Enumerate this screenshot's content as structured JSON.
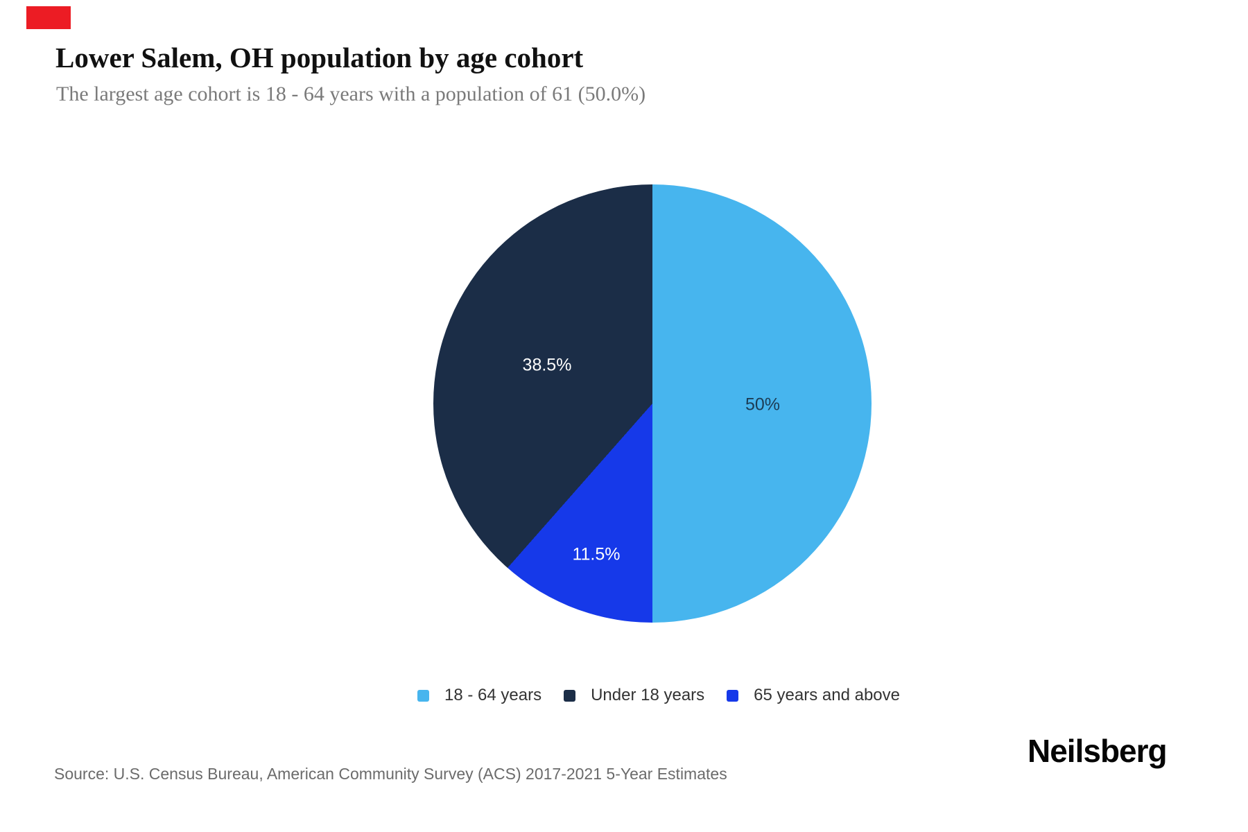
{
  "page": {
    "title": "Lower Salem, OH population by age cohort",
    "subtitle": "The largest age cohort is 18 - 64 years with a population of 61 (50.0%)",
    "source": "Source: U.S. Census Bureau, American Community Survey (ACS) 2017-2021 5-Year Estimates",
    "brand": "Neilsberg"
  },
  "colors": {
    "background": "#FFFFFF",
    "title_text": "#111111",
    "subtitle_text": "#7A7A7A",
    "source_text": "#6B6B6B",
    "legend_text": "#333333",
    "red_marker": "#EC1C24"
  },
  "chart_data": {
    "type": "pie",
    "title": "Lower Salem, OH population by age cohort",
    "largest_cohort": "18 - 64 years",
    "largest_cohort_population": 61,
    "slices": [
      {
        "label": "18 - 64 years",
        "pct": 50.0,
        "pct_label": "50%",
        "color": "#47B5EE",
        "pct_label_color": "#1C3C54"
      },
      {
        "label": "Under 18 years",
        "pct": 38.5,
        "pct_label": "38.5%",
        "color": "#1B2D47",
        "pct_label_color": "#FFFFFF"
      },
      {
        "label": "65 years and above",
        "pct": 11.5,
        "pct_label": "11.5%",
        "color": "#1639E9",
        "pct_label_color": "#FFFFFF"
      }
    ],
    "clockwise_draw_order": [
      0,
      2,
      1
    ],
    "start_angle_deg": 0,
    "legend_position": "bottom",
    "grid": false
  }
}
